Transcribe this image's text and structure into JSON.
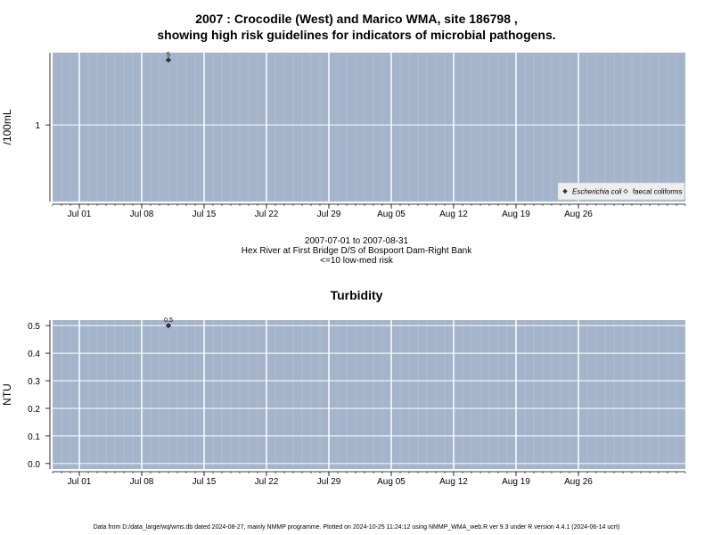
{
  "page": {
    "title_line1": "2007 : Crocodile (West) and Marico WMA, site 186798 ,",
    "title_line2": "showing high risk guidelines for indicators of microbial pathogens.",
    "date_range": "2007-07-01 to 2007-08-31",
    "site_name": "Hex River at First Bridge D/S of Bospoort Dam-Right Bank",
    "risk_note": "<=10 low-med risk",
    "turbidity_title": "Turbidity",
    "footer": "Data from D:/data_large/wq/wms.db dated 2024-08-27, mainly NMMP programme. Plotted on 2024-10-25 11:24:12 using NMMP_WMA_web.R ver 9.3 under R version 4.4.1 (2024-06-14 ucrt)"
  },
  "colors": {
    "panel_bg": "#a3b4cb",
    "grid": "#ffffff",
    "point": "#333333"
  },
  "chart_data": [
    {
      "type": "scatter",
      "ylabel": "/100mL",
      "yscale": "log",
      "x_range": [
        "2007-06-28",
        "2007-09-07"
      ],
      "ylim": [
        0.15,
        6
      ],
      "y_ticks": [
        1
      ],
      "x_tick_labels": [
        "Jul 01",
        "Jul 08",
        "Jul 15",
        "Jul 22",
        "Jul 29",
        "Aug 05",
        "Aug 12",
        "Aug 19",
        "Aug 26"
      ],
      "x_tick_dates": [
        "2007-07-01",
        "2007-07-08",
        "2007-07-15",
        "2007-07-22",
        "2007-07-29",
        "2007-08-05",
        "2007-08-12",
        "2007-08-19",
        "2007-08-26"
      ],
      "grid": true,
      "legend_position": "bottom-right",
      "series": [
        {
          "name": "Escherichia coli",
          "marker": "filled-diamond",
          "points": [
            {
              "x": "2007-07-11",
              "y": 5,
              "label": "5"
            }
          ]
        },
        {
          "name": "faecal coliforms",
          "marker": "open-diamond",
          "points": []
        }
      ]
    },
    {
      "type": "scatter",
      "title": "Turbidity",
      "ylabel": "NTU",
      "x_range": [
        "2007-06-28",
        "2007-09-07"
      ],
      "ylim": [
        -0.02,
        0.52
      ],
      "y_ticks": [
        0.0,
        0.1,
        0.2,
        0.3,
        0.4,
        0.5
      ],
      "y_tick_labels": [
        "0.0",
        "0.1",
        "0.2",
        "0.3",
        "0.4",
        "0.5"
      ],
      "x_tick_labels": [
        "Jul 01",
        "Jul 08",
        "Jul 15",
        "Jul 22",
        "Jul 29",
        "Aug 05",
        "Aug 12",
        "Aug 19",
        "Aug 26"
      ],
      "x_tick_dates": [
        "2007-07-01",
        "2007-07-08",
        "2007-07-15",
        "2007-07-22",
        "2007-07-29",
        "2007-08-05",
        "2007-08-12",
        "2007-08-19",
        "2007-08-26"
      ],
      "grid": true,
      "series": [
        {
          "marker": "filled-diamond",
          "points": [
            {
              "x": "2007-07-11",
              "y": 0.5,
              "label": "0.5"
            }
          ]
        }
      ]
    }
  ]
}
